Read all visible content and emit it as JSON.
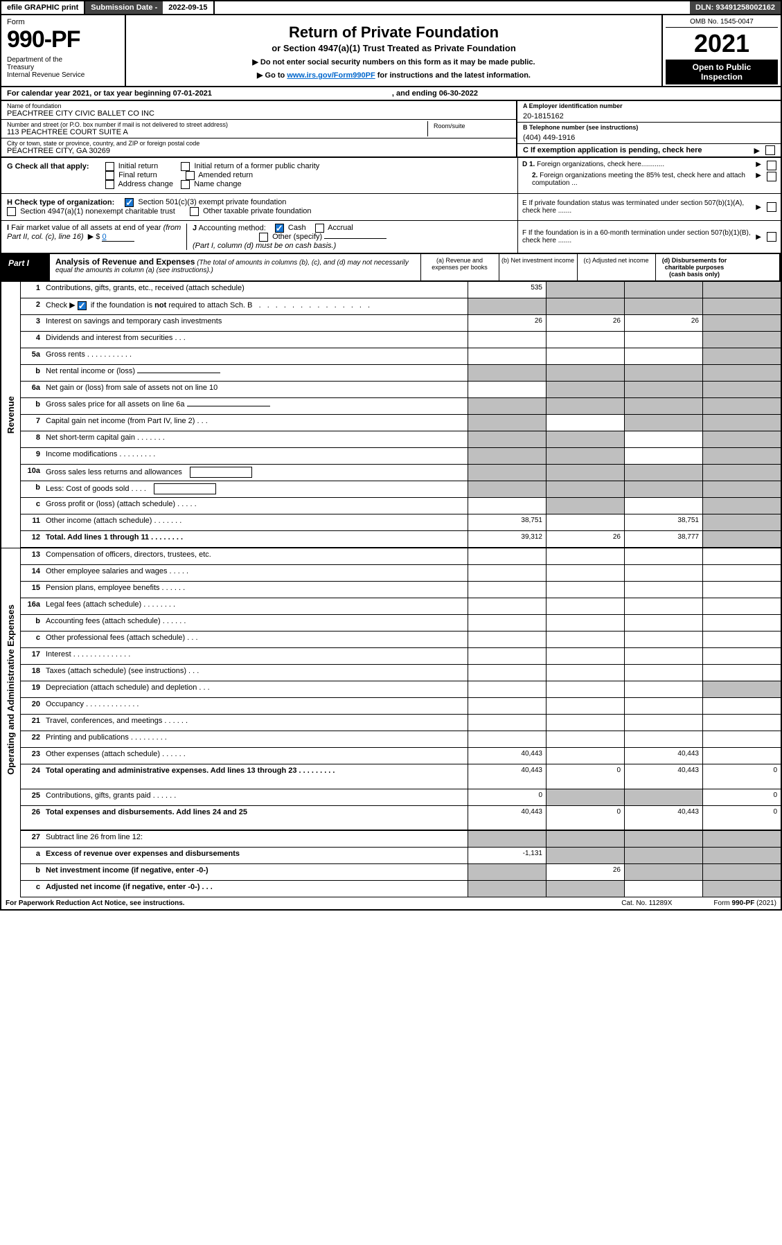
{
  "topbar": {
    "efile": "efile GRAPHIC print",
    "subdate_label": "Submission Date - 2022-09-15",
    "dln": "DLN: 93491258002162"
  },
  "header": {
    "form_word": "Form",
    "form_num": "990-PF",
    "dept": "Department of the Treasury\nInternal Revenue Service",
    "title": "Return of Private Foundation",
    "subtitle": "or Section 4947(a)(1) Trust Treated as Private Foundation",
    "instr1": "▶ Do not enter social security numbers on this form as it may be made public.",
    "instr2_pre": "▶ Go to ",
    "instr2_link": "www.irs.gov/Form990PF",
    "instr2_post": " for instructions and the latest information.",
    "omb": "OMB No. 1545-0047",
    "year": "2021",
    "open": "Open to Public Inspection"
  },
  "calrow": {
    "text": "For calendar year 2021, or tax year beginning 07-01-2021",
    "end": ", and ending 06-30-2022"
  },
  "info": {
    "name_lbl": "Name of foundation",
    "name_val": "PEACHTREE CITY CIVIC BALLET CO INC",
    "addr_lbl": "Number and street (or P.O. box number if mail is not delivered to street address)",
    "addr_val": "113 PEACHTREE COURT SUITE A",
    "room_lbl": "Room/suite",
    "city_lbl": "City or town, state or province, country, and ZIP or foreign postal code",
    "city_val": "PEACHTREE CITY, GA  30269",
    "a_lbl": "A Employer identification number",
    "a_val": "20-1815162",
    "b_lbl": "B Telephone number (see instructions)",
    "b_val": "(404) 449-1916",
    "c_lbl": "C If exemption application is pending, check here"
  },
  "g_section": {
    "g_lbl": "G Check all that apply:",
    "g_opts": [
      "Initial return",
      "Final return",
      "Address change",
      "Initial return of a former public charity",
      "Amended return",
      "Name change"
    ],
    "d1": "D 1. Foreign organizations, check here............",
    "d2": "2. Foreign organizations meeting the 85% test, check here and attach computation ...",
    "h_lbl": "H Check type of organization:",
    "h1": "Section 501(c)(3) exempt private foundation",
    "h2": "Section 4947(a)(1) nonexempt charitable trust",
    "h3": "Other taxable private foundation",
    "e_lbl": "E  If private foundation status was terminated under section 507(b)(1)(A), check here .......",
    "i_lbl": "I Fair market value of all assets at end of year (from Part II, col. (c), line 16)",
    "i_val": "0",
    "j_lbl": "J Accounting method:",
    "j_opts": [
      "Cash",
      "Accrual"
    ],
    "j_other": "Other (specify)",
    "j_note": "(Part I, column (d) must be on cash basis.)",
    "f_lbl": "F  If the foundation is in a 60-month termination under section 507(b)(1)(B), check here ......."
  },
  "part1": {
    "label": "Part I",
    "title": "Analysis of Revenue and Expenses",
    "note": "(The total of amounts in columns (b), (c), and (d) may not necessarily equal the amounts in column (a) (see instructions).)",
    "cols": [
      "(a)  Revenue and expenses per books",
      "(b)  Net investment income",
      "(c)  Adjusted net income",
      "(d)  Disbursements for charitable purposes (cash basis only)"
    ]
  },
  "side_labels": {
    "rev": "Revenue",
    "exp": "Operating and Administrative Expenses"
  },
  "rows": [
    {
      "ln": "1",
      "desc": "Contributions, gifts, grants, etc., received (attach schedule)",
      "a": "535",
      "b": "",
      "c": "",
      "d": "",
      "agray": false,
      "bgray": true,
      "cgray": true,
      "dgray": true
    },
    {
      "ln": "2",
      "desc": "Check ▶ [✓] if the foundation is not required to attach Sch. B",
      "all_gray": true,
      "special": "row2"
    },
    {
      "ln": "3",
      "desc": "Interest on savings and temporary cash investments",
      "a": "26",
      "b": "26",
      "c": "26",
      "dgray": true
    },
    {
      "ln": "4",
      "desc": "Dividends and interest from securities    .   .   .",
      "dgray": true
    },
    {
      "ln": "5a",
      "desc": "Gross rents    .   .   .   .   .   .   .   .   .   .   .",
      "dgray": true
    },
    {
      "ln": "b",
      "desc": "Net rental income or (loss)",
      "all_gray": true,
      "has_inline_line": true
    },
    {
      "ln": "6a",
      "desc": "Net gain or (loss) from sale of assets not on line 10",
      "bgray": true,
      "cgray": true,
      "dgray": true
    },
    {
      "ln": "b",
      "desc": "Gross sales price for all assets on line 6a",
      "all_gray": true,
      "has_inline_line": true
    },
    {
      "ln": "7",
      "desc": "Capital gain net income (from Part IV, line 2)    .   .   .",
      "agray": true,
      "cgray": true,
      "dgray": true
    },
    {
      "ln": "8",
      "desc": "Net short-term capital gain   .   .   .   .   .   .   .",
      "agray": true,
      "bgray": true,
      "dgray": true
    },
    {
      "ln": "9",
      "desc": "Income modifications  .   .   .   .   .   .   .   .   .",
      "agray": true,
      "bgray": true,
      "dgray": true
    },
    {
      "ln": "10a",
      "desc": "Gross sales less returns and allowances",
      "all_gray": true,
      "has_box": true
    },
    {
      "ln": "b",
      "desc": "Less: Cost of goods sold     .   .   .   .",
      "all_gray": true,
      "has_box": true
    },
    {
      "ln": "c",
      "desc": "Gross profit or (loss) (attach schedule)    .   .   .   .   .",
      "bgray": true,
      "dgray": true
    },
    {
      "ln": "11",
      "desc": "Other income (attach schedule)    .   .   .   .   .   .   .",
      "a": "38,751",
      "b": "",
      "c": "38,751",
      "dgray": true
    },
    {
      "ln": "12",
      "desc": "Total. Add lines 1 through 11   .   .   .   .   .   .   .   .",
      "a": "39,312",
      "b": "26",
      "c": "38,777",
      "dgray": true,
      "bold": true
    }
  ],
  "exp_rows": [
    {
      "ln": "13",
      "desc": "Compensation of officers, directors, trustees, etc."
    },
    {
      "ln": "14",
      "desc": "Other employee salaries and wages    .   .   .   .   ."
    },
    {
      "ln": "15",
      "desc": "Pension plans, employee benefits  .   .   .   .   .   ."
    },
    {
      "ln": "16a",
      "desc": "Legal fees (attach schedule)  .   .   .   .   .   .   .   ."
    },
    {
      "ln": "b",
      "desc": "Accounting fees (attach schedule)  .   .   .   .   .   ."
    },
    {
      "ln": "c",
      "desc": "Other professional fees (attach schedule)    .   .   ."
    },
    {
      "ln": "17",
      "desc": "Interest  .   .   .   .   .   .   .   .   .   .   .   .   .   ."
    },
    {
      "ln": "18",
      "desc": "Taxes (attach schedule) (see instructions)     .   .   ."
    },
    {
      "ln": "19",
      "desc": "Depreciation (attach schedule) and depletion    .   .   .",
      "dgray": true
    },
    {
      "ln": "20",
      "desc": "Occupancy  .   .   .   .   .   .   .   .   .   .   .   .   ."
    },
    {
      "ln": "21",
      "desc": "Travel, conferences, and meetings  .   .   .   .   .   ."
    },
    {
      "ln": "22",
      "desc": "Printing and publications  .   .   .   .   .   .   .   .   ."
    },
    {
      "ln": "23",
      "desc": "Other expenses (attach schedule)  .   .   .   .   .   .",
      "a": "40,443",
      "c": "40,443"
    },
    {
      "ln": "24",
      "desc": "Total operating and administrative expenses. Add lines 13 through 23   .   .   .   .   .   .   .   .   .",
      "a": "40,443",
      "b": "0",
      "c": "40,443",
      "d": "0",
      "bold": true,
      "tall": true
    },
    {
      "ln": "25",
      "desc": "Contributions, gifts, grants paid     .   .   .   .   .   .",
      "a": "0",
      "bgray": true,
      "cgray": true,
      "d": "0"
    },
    {
      "ln": "26",
      "desc": "Total expenses and disbursements. Add lines 24 and 25",
      "a": "40,443",
      "b": "0",
      "c": "40,443",
      "d": "0",
      "bold": true,
      "tall": true,
      "border_thick": true
    }
  ],
  "final_rows": [
    {
      "ln": "27",
      "desc": "Subtract line 26 from line 12:",
      "all_gray": true
    },
    {
      "ln": "a",
      "desc": "Excess of revenue over expenses and disbursements",
      "a": "-1,131",
      "bgray": true,
      "cgray": true,
      "dgray": true,
      "bold": true
    },
    {
      "ln": "b",
      "desc": "Net investment income (if negative, enter -0-)",
      "agray": true,
      "b": "26",
      "cgray": true,
      "dgray": true,
      "bold": true
    },
    {
      "ln": "c",
      "desc": "Adjusted net income (if negative, enter -0-)    .   .   .",
      "agray": true,
      "bgray": true,
      "dgray": true,
      "bold": true
    }
  ],
  "footer": {
    "left": "For Paperwork Reduction Act Notice, see instructions.",
    "mid": "Cat. No. 11289X",
    "right": "Form 990-PF (2021)"
  },
  "colors": {
    "black": "#000000",
    "gray_cell": "#bfbfbf",
    "dark_gray": "#444444",
    "link_blue": "#0066cc",
    "check_blue": "#1976d2"
  }
}
